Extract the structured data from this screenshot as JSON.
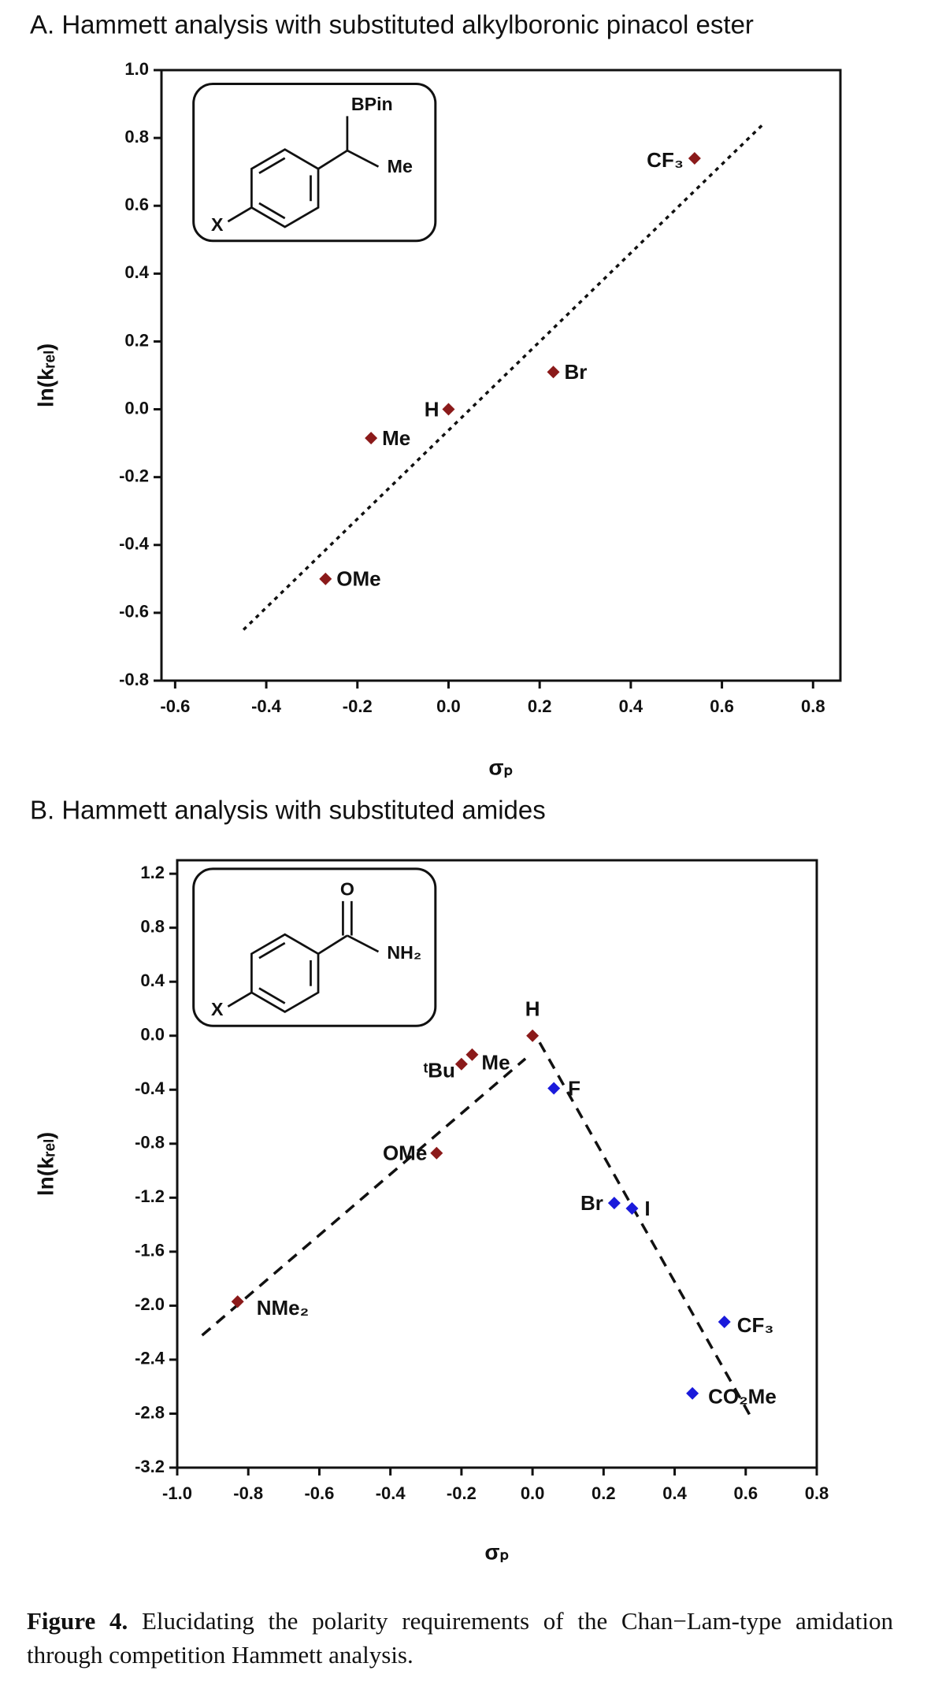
{
  "chart_data": [
    {
      "type": "scatter",
      "title": "A. Hammett analysis with substituted alkylboronic pinacol ester",
      "xlabel": "σₚ",
      "ylabel": "ln(kᵣₑₗ)",
      "xlim": [
        -0.63,
        0.86
      ],
      "ylim": [
        -0.8,
        1.0
      ],
      "xticks": [
        -0.6,
        -0.4,
        -0.2,
        {
          "value": 0,
          "label": "0.0"
        },
        0.2,
        0.4,
        0.6,
        0.8
      ],
      "yticks": [
        -0.8,
        -0.6,
        -0.4,
        -0.2,
        {
          "value": 0,
          "label": "0.0"
        },
        0.2,
        0.4,
        0.6,
        0.8,
        {
          "value": 1,
          "label": "1.0"
        }
      ],
      "series": [
        {
          "color": "#8b1a1a",
          "x": [
            -0.27,
            -0.17,
            0,
            0.23,
            0.54
          ],
          "y": [
            -0.5,
            -0.085,
            0,
            0.11,
            0.74
          ],
          "labels": [
            "OMe",
            "Me",
            "H",
            "Br",
            "CF₃"
          ]
        }
      ],
      "fit_lines": [
        {
          "x": [
            -0.45,
            0.69
          ],
          "y": [
            -0.65,
            0.84
          ]
        }
      ],
      "fit_style": "dotted",
      "inset_labels": [
        "BPin",
        "Me",
        "X"
      ]
    },
    {
      "type": "scatter",
      "title": "B. Hammett analysis with substituted amides",
      "xlabel": "σₚ",
      "ylabel": "ln(kᵣₑₗ)",
      "xlim": [
        -1.0,
        0.8
      ],
      "ylim": [
        -3.2,
        1.3
      ],
      "xticks": [
        {
          "value": -1,
          "label": "-1.0"
        },
        -0.8,
        -0.6,
        -0.4,
        -0.2,
        {
          "value": 0,
          "label": "0.0"
        },
        0.2,
        0.4,
        0.6,
        0.8
      ],
      "yticks": [
        -3.2,
        -2.8,
        -2.4,
        {
          "value": -2,
          "label": "-2.0"
        },
        -1.6,
        -1.2,
        -0.8,
        -0.4,
        {
          "value": 0,
          "label": "0.0"
        },
        0.4,
        0.8,
        1.2
      ],
      "series": [
        {
          "color": "#8b1a1a",
          "x": [
            -0.83,
            -0.27,
            -0.2,
            -0.17,
            0
          ],
          "y": [
            -1.97,
            -0.87,
            -0.21,
            -0.14,
            0
          ],
          "labels": [
            "NMe₂",
            "OMe",
            "ᵗBu",
            "Me",
            "H"
          ]
        },
        {
          "color": "#1a1adb",
          "x": [
            0.06,
            0.23,
            0.28,
            0.54,
            0.45
          ],
          "y": [
            -0.39,
            -1.24,
            -1.28,
            -2.12,
            -2.65
          ],
          "labels": [
            "F",
            "Br",
            "I",
            "CF₃",
            "CO₂Me"
          ]
        }
      ],
      "fit_lines": [
        {
          "x": [
            -0.93,
            -0.02
          ],
          "y": [
            -2.22,
            -0.17
          ]
        },
        {
          "x": [
            0.02,
            0.62
          ],
          "y": [
            -0.05,
            -2.85
          ]
        }
      ],
      "fit_style": "dashed",
      "inset_labels": [
        "O",
        "NH₂",
        "X"
      ]
    }
  ],
  "caption": {
    "label": "Figure 4.",
    "text": "Elucidating the polarity requirements of the Chan−Lam-type amidation through competition Hammett analysis."
  }
}
